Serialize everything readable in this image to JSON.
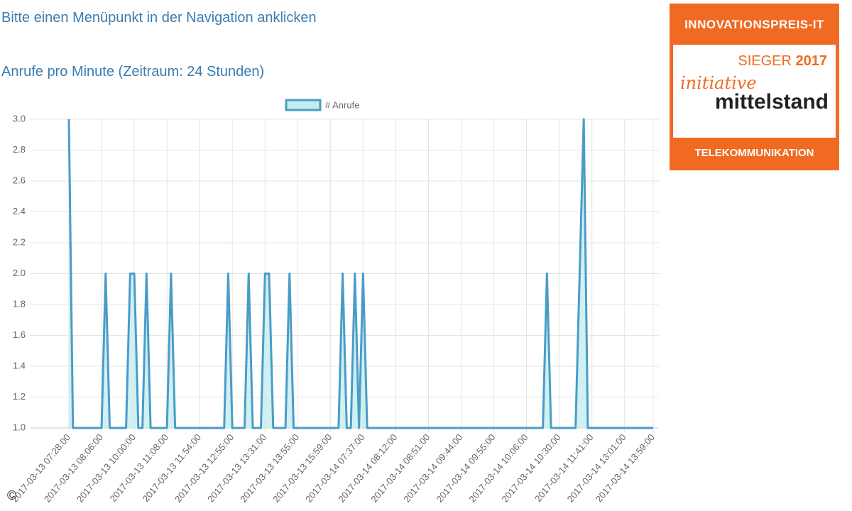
{
  "page": {
    "prompt": "Bitte einen Menüpunkt in der Navigation anklicken",
    "copyright": "©"
  },
  "badge": {
    "top": "INNOVATIONSPREIS-IT",
    "winner": "SIEGER",
    "year": "2017",
    "brand_script": "initiative",
    "brand": "mittelstand",
    "category": "TELEKOMMUNIKATION"
  },
  "chart_data": {
    "type": "line",
    "title": "Anrufe pro Minute (Zeitraum: 24 Stunden)",
    "categories": [
      "2017-03-13 07:28:00",
      null,
      null,
      null,
      null,
      null,
      null,
      null,
      "2017-03-13 08:06:00",
      null,
      null,
      null,
      null,
      null,
      null,
      null,
      "2017-03-13 10:00:00",
      null,
      null,
      null,
      null,
      null,
      null,
      null,
      "2017-03-13 11:08:00",
      null,
      null,
      null,
      null,
      null,
      null,
      null,
      "2017-03-13 11:54:00",
      null,
      null,
      null,
      null,
      null,
      null,
      null,
      "2017-03-13 12:55:00",
      null,
      null,
      null,
      null,
      null,
      null,
      null,
      "2017-03-13 13:31:00",
      null,
      null,
      null,
      null,
      null,
      null,
      null,
      "2017-03-13 13:55:00",
      null,
      null,
      null,
      null,
      null,
      null,
      null,
      "2017-03-13 15:59:00",
      null,
      null,
      null,
      null,
      null,
      null,
      null,
      "2017-03-14 07:37:00",
      null,
      null,
      null,
      null,
      null,
      null,
      null,
      "2017-03-14 08:12:00",
      null,
      null,
      null,
      null,
      null,
      null,
      null,
      "2017-03-14 08:51:00",
      null,
      null,
      null,
      null,
      null,
      null,
      null,
      "2017-03-14 09:44:00",
      null,
      null,
      null,
      null,
      null,
      null,
      null,
      "2017-03-14 09:55:00",
      null,
      null,
      null,
      null,
      null,
      null,
      null,
      "2017-03-14 10:06:00",
      null,
      null,
      null,
      null,
      null,
      null,
      null,
      "2017-03-14 10:30:00",
      null,
      null,
      null,
      null,
      null,
      null,
      null,
      "2017-03-14 11:41:00",
      null,
      null,
      null,
      null,
      null,
      null,
      null,
      "2017-03-14 13:01:00",
      null,
      null,
      null,
      null,
      null,
      null,
      "2017-03-14 13:59:00"
    ],
    "series": [
      {
        "name": "# Anrufe",
        "color": "#4a9cc8",
        "fill": "#c6ecee",
        "values": [
          3,
          1,
          1,
          1,
          1,
          1,
          1,
          1,
          1,
          2,
          1,
          1,
          1,
          1,
          1,
          2,
          2,
          1,
          1,
          2,
          1,
          1,
          1,
          1,
          1,
          2,
          1,
          1,
          1,
          1,
          1,
          1,
          1,
          1,
          1,
          1,
          1,
          1,
          1,
          2,
          1,
          1,
          1,
          1,
          2,
          1,
          1,
          1,
          2,
          2,
          1,
          1,
          1,
          1,
          2,
          1,
          1,
          1,
          1,
          1,
          1,
          1,
          1,
          1,
          1,
          1,
          1,
          2,
          1,
          1,
          2,
          1,
          2,
          1,
          1,
          1,
          1,
          1,
          1,
          1,
          1,
          1,
          1,
          1,
          1,
          1,
          1,
          1,
          1,
          1,
          1,
          1,
          1,
          1,
          1,
          1,
          1,
          1,
          1,
          1,
          1,
          1,
          1,
          1,
          1,
          1,
          1,
          1,
          1,
          1,
          1,
          1,
          1,
          1,
          1,
          1,
          1,
          2,
          1,
          1,
          1,
          1,
          1,
          1,
          1,
          2,
          3,
          1,
          1,
          1,
          1,
          1,
          1,
          1,
          1,
          1,
          1,
          1,
          1,
          1,
          1,
          1,
          1,
          1
        ]
      }
    ],
    "ylim": [
      1,
      3
    ],
    "yticks": [
      {
        "value": 1,
        "label": "1.0"
      },
      1.2,
      1.4,
      1.6,
      1.8,
      {
        "value": 2,
        "label": "2.0"
      },
      2.2,
      2.4,
      2.6,
      2.8,
      {
        "value": 3,
        "label": "3.0"
      }
    ],
    "grid": true
  }
}
